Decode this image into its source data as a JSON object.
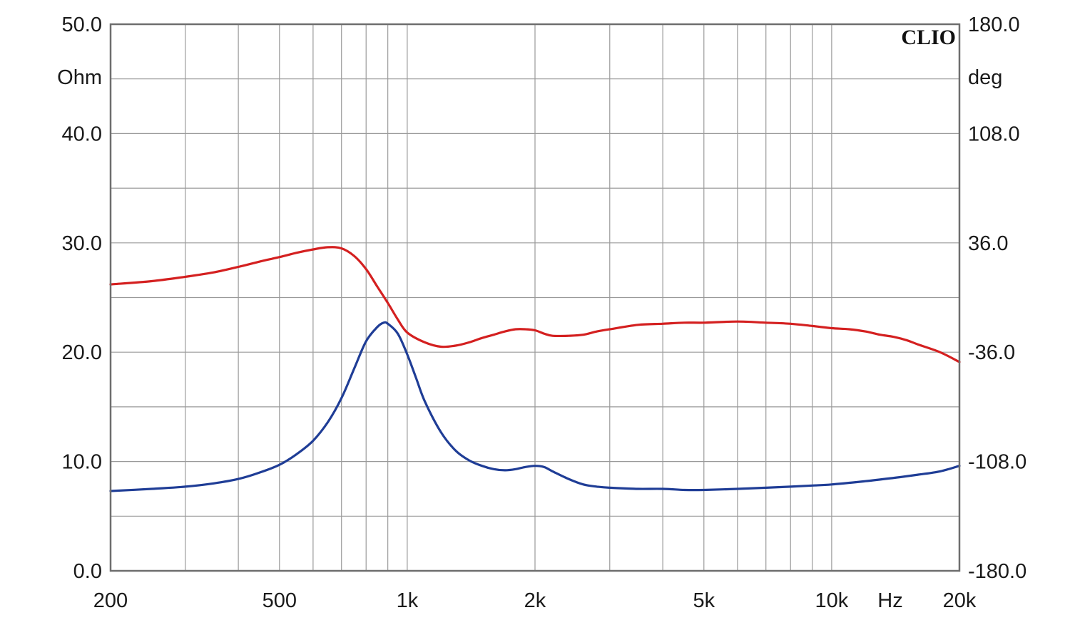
{
  "chart_data": {
    "type": "line",
    "brand": "CLIO",
    "x_scale": "log",
    "xlim": [
      200,
      20000
    ],
    "x_ticks": [
      {
        "value": 200,
        "label": "200"
      },
      {
        "value": 500,
        "label": "500"
      },
      {
        "value": 1000,
        "label": "1k"
      },
      {
        "value": 2000,
        "label": "2k"
      },
      {
        "value": 5000,
        "label": "5k"
      },
      {
        "value": 10000,
        "label": "10k"
      },
      {
        "value": 20000,
        "label": "20k"
      }
    ],
    "x_unit": "Hz",
    "ylim_left": [
      0,
      50
    ],
    "y_left_unit": "Ohm",
    "y_left_ticks": [
      "50.0",
      "40.0",
      "30.0",
      "20.0",
      "10.0",
      "0.0"
    ],
    "ylim_right": [
      -180,
      180
    ],
    "y_right_unit": "deg",
    "y_right_ticks": [
      "180.0",
      "108.0",
      "36.0",
      "-36.0",
      "-108.0",
      "-180.0"
    ],
    "grid": true,
    "series": [
      {
        "axis": "left",
        "color": "#d42020",
        "points": [
          [
            200,
            26.2
          ],
          [
            250,
            26.5
          ],
          [
            300,
            26.9
          ],
          [
            350,
            27.3
          ],
          [
            400,
            27.8
          ],
          [
            450,
            28.3
          ],
          [
            500,
            28.7
          ],
          [
            550,
            29.1
          ],
          [
            600,
            29.4
          ],
          [
            650,
            29.6
          ],
          [
            700,
            29.5
          ],
          [
            750,
            28.8
          ],
          [
            800,
            27.6
          ],
          [
            850,
            26.0
          ],
          [
            900,
            24.5
          ],
          [
            950,
            23.0
          ],
          [
            1000,
            21.8
          ],
          [
            1100,
            20.9
          ],
          [
            1200,
            20.5
          ],
          [
            1300,
            20.6
          ],
          [
            1400,
            20.9
          ],
          [
            1500,
            21.3
          ],
          [
            1600,
            21.6
          ],
          [
            1700,
            21.9
          ],
          [
            1800,
            22.1
          ],
          [
            1900,
            22.1
          ],
          [
            2000,
            22.0
          ],
          [
            2100,
            21.7
          ],
          [
            2200,
            21.5
          ],
          [
            2400,
            21.5
          ],
          [
            2600,
            21.6
          ],
          [
            2800,
            21.9
          ],
          [
            3000,
            22.1
          ],
          [
            3500,
            22.5
          ],
          [
            4000,
            22.6
          ],
          [
            4500,
            22.7
          ],
          [
            5000,
            22.7
          ],
          [
            6000,
            22.8
          ],
          [
            7000,
            22.7
          ],
          [
            8000,
            22.6
          ],
          [
            9000,
            22.4
          ],
          [
            10000,
            22.2
          ],
          [
            11000,
            22.1
          ],
          [
            12000,
            21.9
          ],
          [
            13000,
            21.6
          ],
          [
            14000,
            21.4
          ],
          [
            15000,
            21.1
          ],
          [
            16000,
            20.7
          ],
          [
            18000,
            20.0
          ],
          [
            20000,
            19.1
          ]
        ]
      },
      {
        "axis": "left",
        "color": "#1f3d96",
        "points": [
          [
            200,
            7.3
          ],
          [
            250,
            7.5
          ],
          [
            300,
            7.7
          ],
          [
            350,
            8.0
          ],
          [
            400,
            8.4
          ],
          [
            450,
            9.0
          ],
          [
            500,
            9.7
          ],
          [
            550,
            10.7
          ],
          [
            600,
            11.9
          ],
          [
            650,
            13.6
          ],
          [
            700,
            15.8
          ],
          [
            750,
            18.5
          ],
          [
            800,
            21.0
          ],
          [
            850,
            22.3
          ],
          [
            880,
            22.7
          ],
          [
            900,
            22.6
          ],
          [
            950,
            21.7
          ],
          [
            1000,
            19.8
          ],
          [
            1050,
            17.6
          ],
          [
            1100,
            15.5
          ],
          [
            1200,
            12.7
          ],
          [
            1300,
            11.0
          ],
          [
            1400,
            10.1
          ],
          [
            1500,
            9.6
          ],
          [
            1600,
            9.3
          ],
          [
            1700,
            9.2
          ],
          [
            1800,
            9.3
          ],
          [
            1900,
            9.5
          ],
          [
            2000,
            9.6
          ],
          [
            2100,
            9.5
          ],
          [
            2200,
            9.1
          ],
          [
            2400,
            8.4
          ],
          [
            2600,
            7.9
          ],
          [
            2800,
            7.7
          ],
          [
            3000,
            7.6
          ],
          [
            3500,
            7.5
          ],
          [
            4000,
            7.5
          ],
          [
            4500,
            7.4
          ],
          [
            5000,
            7.4
          ],
          [
            6000,
            7.5
          ],
          [
            7000,
            7.6
          ],
          [
            8000,
            7.7
          ],
          [
            9000,
            7.8
          ],
          [
            10000,
            7.9
          ],
          [
            12000,
            8.2
          ],
          [
            14000,
            8.5
          ],
          [
            16000,
            8.8
          ],
          [
            18000,
            9.1
          ],
          [
            20000,
            9.6
          ]
        ]
      }
    ]
  }
}
